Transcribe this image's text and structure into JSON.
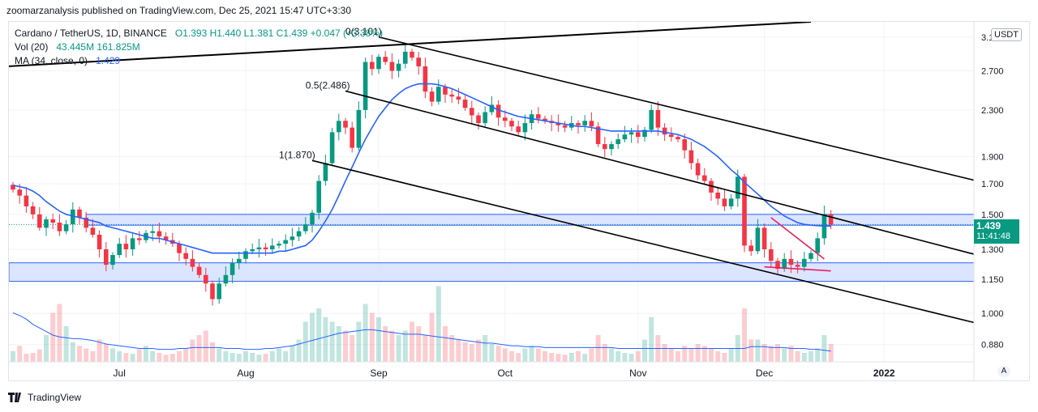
{
  "header": {
    "published": "zoomarzanalysis published on TradingView.com, Dec 25, 2021 15:47 UTC+3:30"
  },
  "legend": {
    "symbol": "Cardano / TetherUS, 1D, BINANCE",
    "ohlc": "O1.393  H1.440  L1.381  C1.439  +0.047 (+3.38%)",
    "vol_label": "Vol (20)",
    "vol_values": "43.445M  161.825M",
    "ma_label": "MA (34, close, 0)",
    "ma_value": "1.429"
  },
  "price_axis": {
    "currency": "USDT",
    "last_price": "1.439",
    "countdown": "11:41:48"
  },
  "auto_button": "A",
  "footer": {
    "brand": "TradingView"
  },
  "chart_data": {
    "type": "candlestick",
    "symbol": "ADAUSDT",
    "x_tick_labels": [
      "Jul",
      "Aug",
      "Sep",
      "Oct",
      "Nov",
      "Dec",
      "2022"
    ],
    "y_tick_labels": [
      "3.100",
      "2.700",
      "2.300",
      "1.900",
      "1.700",
      "1.500",
      "1.300",
      "1.150",
      "1.000",
      "0.880"
    ],
    "y_scale": "log",
    "ylim": [
      0.82,
      3.3
    ],
    "fib_labels": [
      {
        "label": "0(3.101)",
        "price": 3.101
      },
      {
        "label": "0.5(2.486)",
        "price": 2.486
      },
      {
        "label": "1(1.870)",
        "price": 1.87
      }
    ],
    "zones": [
      {
        "from": 1.435,
        "to": 1.5,
        "color": "#2962ff"
      },
      {
        "from": 1.14,
        "to": 1.23,
        "color": "#2962ff"
      }
    ],
    "last_price": 1.439,
    "closes": [
      1.66,
      1.62,
      1.55,
      1.5,
      1.42,
      1.47,
      1.45,
      1.4,
      1.44,
      1.53,
      1.48,
      1.42,
      1.38,
      1.3,
      1.22,
      1.27,
      1.33,
      1.3,
      1.36,
      1.35,
      1.39,
      1.4,
      1.37,
      1.35,
      1.33,
      1.28,
      1.25,
      1.21,
      1.17,
      1.13,
      1.06,
      1.13,
      1.17,
      1.23,
      1.25,
      1.29,
      1.3,
      1.31,
      1.3,
      1.32,
      1.33,
      1.35,
      1.37,
      1.4,
      1.44,
      1.51,
      1.72,
      1.85,
      2.1,
      2.2,
      2.14,
      1.97,
      2.3,
      2.8,
      2.72,
      2.86,
      2.8,
      2.7,
      2.78,
      2.92,
      2.85,
      2.75,
      2.48,
      2.38,
      2.53,
      2.45,
      2.43,
      2.4,
      2.32,
      2.25,
      2.18,
      2.28,
      2.35,
      2.23,
      2.2,
      2.15,
      2.1,
      2.18,
      2.26,
      2.22,
      2.2,
      2.18,
      2.16,
      2.14,
      2.18,
      2.16,
      2.2,
      2.15,
      2.0,
      1.96,
      2.0,
      2.04,
      2.08,
      2.1,
      2.06,
      2.12,
      2.3,
      2.14,
      2.08,
      2.06,
      2.04,
      1.95,
      1.85,
      1.76,
      1.72,
      1.64,
      1.6,
      1.55,
      1.6,
      1.75,
      1.32,
      1.29,
      1.42,
      1.3,
      1.24,
      1.2,
      1.25,
      1.22,
      1.21,
      1.25,
      1.28,
      1.36,
      1.5,
      1.439
    ],
    "ma34": [
      1.69,
      1.68,
      1.67,
      1.65,
      1.62,
      1.58,
      1.55,
      1.52,
      1.5,
      1.49,
      1.48,
      1.47,
      1.46,
      1.45,
      1.43,
      1.42,
      1.41,
      1.4,
      1.39,
      1.38,
      1.37,
      1.36,
      1.36,
      1.35,
      1.34,
      1.33,
      1.32,
      1.31,
      1.3,
      1.29,
      1.28,
      1.28,
      1.28,
      1.28,
      1.28,
      1.28,
      1.28,
      1.28,
      1.28,
      1.28,
      1.29,
      1.29,
      1.3,
      1.31,
      1.32,
      1.35,
      1.4,
      1.46,
      1.53,
      1.62,
      1.72,
      1.82,
      1.93,
      2.04,
      2.14,
      2.24,
      2.32,
      2.4,
      2.46,
      2.51,
      2.54,
      2.56,
      2.56,
      2.56,
      2.55,
      2.53,
      2.51,
      2.48,
      2.45,
      2.42,
      2.39,
      2.36,
      2.33,
      2.3,
      2.28,
      2.26,
      2.24,
      2.23,
      2.22,
      2.21,
      2.2,
      2.19,
      2.18,
      2.17,
      2.16,
      2.15,
      2.15,
      2.14,
      2.13,
      2.12,
      2.11,
      2.11,
      2.11,
      2.11,
      2.11,
      2.11,
      2.11,
      2.11,
      2.1,
      2.09,
      2.08,
      2.06,
      2.04,
      2.01,
      1.98,
      1.94,
      1.9,
      1.85,
      1.8,
      1.76,
      1.71,
      1.67,
      1.63,
      1.59,
      1.55,
      1.52,
      1.49,
      1.47,
      1.45,
      1.44,
      1.435,
      1.432,
      1.43,
      1.429
    ],
    "volume_relative": [
      0.12,
      0.18,
      0.09,
      0.1,
      0.14,
      0.3,
      0.55,
      0.65,
      0.4,
      0.22,
      0.18,
      0.15,
      0.12,
      0.25,
      0.2,
      0.15,
      0.12,
      0.1,
      0.09,
      0.14,
      0.18,
      0.12,
      0.1,
      0.08,
      0.09,
      0.12,
      0.15,
      0.25,
      0.3,
      0.35,
      0.22,
      0.15,
      0.12,
      0.1,
      0.09,
      0.12,
      0.1,
      0.08,
      0.09,
      0.12,
      0.15,
      0.12,
      0.18,
      0.25,
      0.45,
      0.55,
      0.6,
      0.5,
      0.45,
      0.4,
      0.35,
      0.3,
      0.45,
      0.65,
      0.55,
      0.5,
      0.4,
      0.35,
      0.3,
      0.35,
      0.45,
      0.4,
      0.3,
      0.55,
      0.85,
      0.4,
      0.3,
      0.25,
      0.22,
      0.2,
      0.25,
      0.3,
      0.2,
      0.18,
      0.15,
      0.12,
      0.1,
      0.15,
      0.18,
      0.15,
      0.12,
      0.1,
      0.09,
      0.08,
      0.1,
      0.12,
      0.09,
      0.15,
      0.3,
      0.2,
      0.15,
      0.12,
      0.1,
      0.09,
      0.12,
      0.25,
      0.5,
      0.3,
      0.2,
      0.15,
      0.12,
      0.18,
      0.15,
      0.2,
      0.18,
      0.15,
      0.12,
      0.1,
      0.15,
      0.3,
      0.6,
      0.25,
      0.25,
      0.2,
      0.18,
      0.2,
      0.15,
      0.18,
      0.12,
      0.1,
      0.12,
      0.15,
      0.3,
      0.2
    ],
    "volume_ma_relative": [
      0.55,
      0.52,
      0.48,
      0.42,
      0.38,
      0.34,
      0.3,
      0.28,
      0.27,
      0.26,
      0.26,
      0.25,
      0.24,
      0.22,
      0.2,
      0.19,
      0.18,
      0.17,
      0.16,
      0.15,
      0.15,
      0.15,
      0.14,
      0.14,
      0.14,
      0.15,
      0.15,
      0.16,
      0.16,
      0.16,
      0.16,
      0.16,
      0.15,
      0.15,
      0.15,
      0.14,
      0.14,
      0.14,
      0.15,
      0.15,
      0.16,
      0.17,
      0.18,
      0.2,
      0.22,
      0.24,
      0.26,
      0.28,
      0.3,
      0.32,
      0.33,
      0.34,
      0.35,
      0.36,
      0.36,
      0.35,
      0.34,
      0.33,
      0.32,
      0.31,
      0.31,
      0.31,
      0.3,
      0.29,
      0.28,
      0.27,
      0.26,
      0.25,
      0.24,
      0.23,
      0.22,
      0.21,
      0.21,
      0.2,
      0.19,
      0.18,
      0.18,
      0.17,
      0.17,
      0.17,
      0.16,
      0.16,
      0.16,
      0.16,
      0.16,
      0.16,
      0.16,
      0.16,
      0.16,
      0.16,
      0.16,
      0.15,
      0.15,
      0.15,
      0.15,
      0.15,
      0.15,
      0.15,
      0.15,
      0.15,
      0.15,
      0.15,
      0.15,
      0.15,
      0.15,
      0.15,
      0.15,
      0.15,
      0.15,
      0.15,
      0.15,
      0.17,
      0.17,
      0.17,
      0.16,
      0.16,
      0.16,
      0.15,
      0.15,
      0.15,
      0.14,
      0.14,
      0.13,
      0.12
    ]
  },
  "colors": {
    "up": "#089981",
    "down": "#f23645",
    "ma": "#2962ff",
    "trend": "#000000",
    "wedge": "#e91e63",
    "zone_fill": "#d6e0ff",
    "zone_border": "#2962ff",
    "grid": "#f0f3fa"
  }
}
